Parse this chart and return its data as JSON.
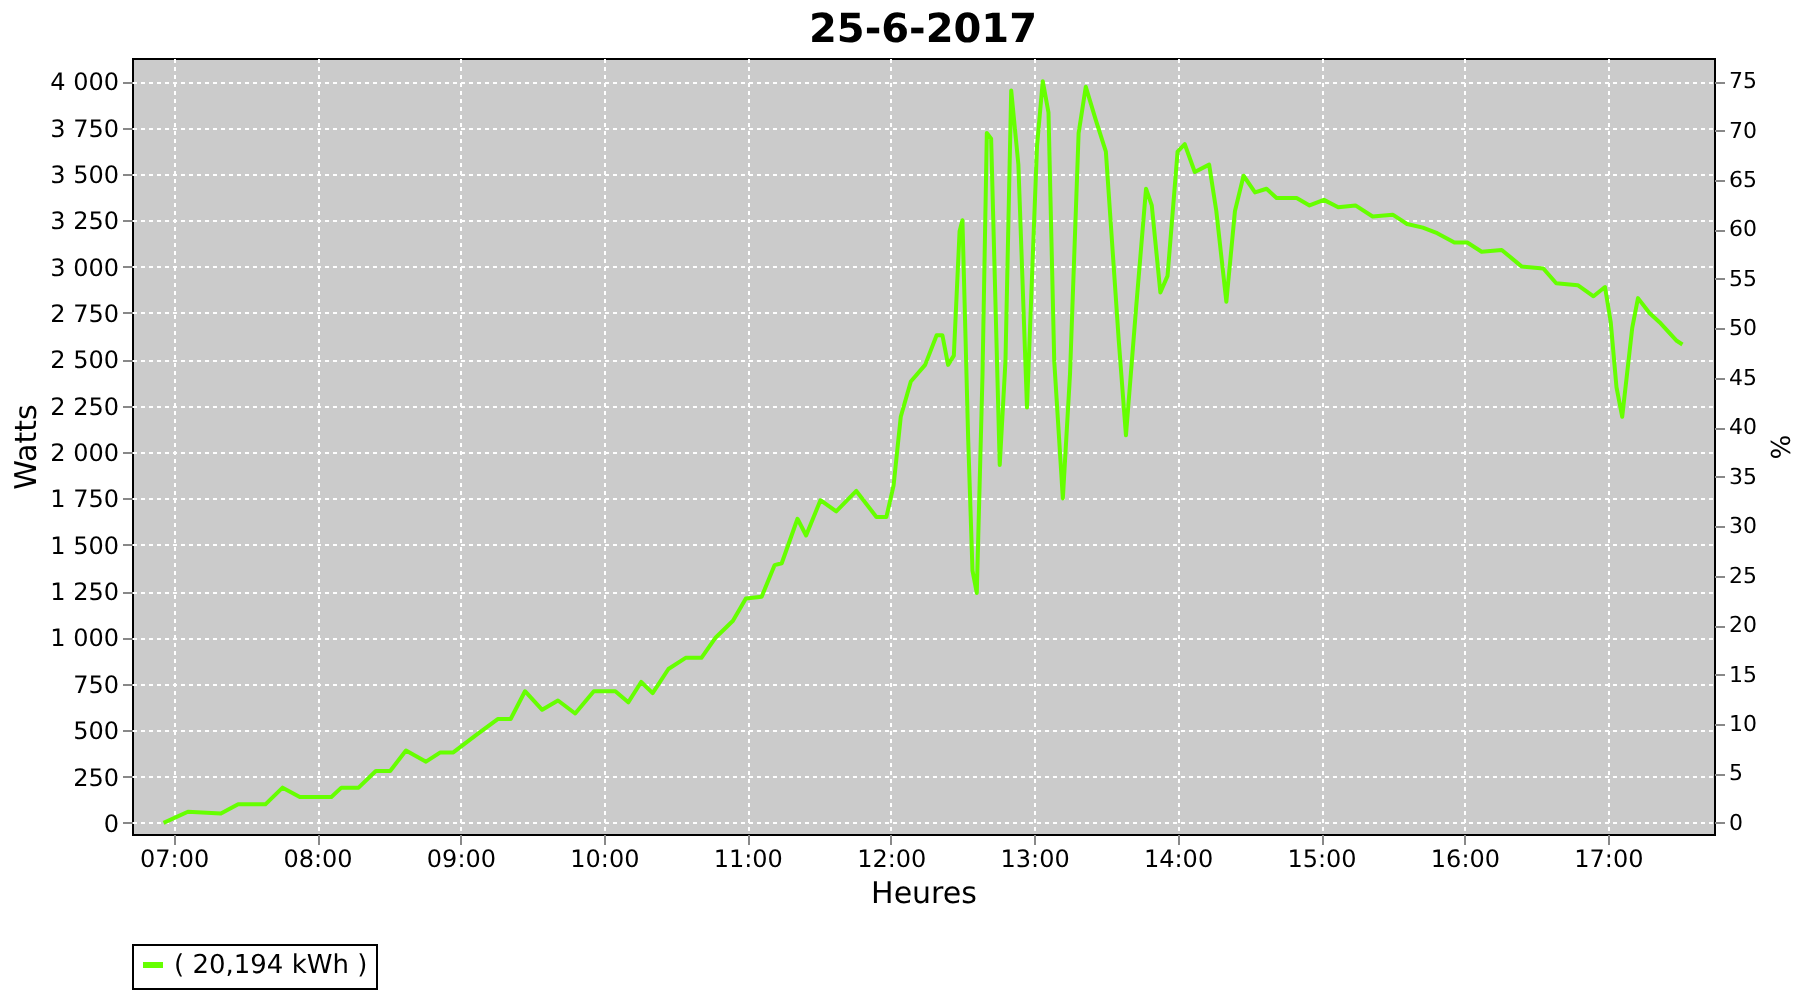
{
  "chart_data": {
    "type": "line",
    "title": "25-6-2017",
    "xlabel": "Heures",
    "ylabel": "Watts",
    "y2label": "%",
    "x": [
      6.93,
      7.1,
      7.33,
      7.45,
      7.64,
      7.76,
      7.88,
      8.1,
      8.17,
      8.29,
      8.41,
      8.51,
      8.62,
      8.76,
      8.86,
      8.95,
      9.12,
      9.26,
      9.35,
      9.45,
      9.57,
      9.68,
      9.8,
      9.93,
      10.08,
      10.17,
      10.26,
      10.34,
      10.45,
      10.57,
      10.68,
      10.78,
      10.9,
      10.99,
      11.1,
      11.19,
      11.24,
      11.35,
      11.41,
      11.51,
      11.62,
      11.76,
      11.9,
      11.97,
      12.02,
      12.07,
      12.14,
      12.24,
      12.32,
      12.36,
      12.4,
      12.44,
      12.48,
      12.5,
      12.54,
      12.57,
      12.6,
      12.64,
      12.67,
      12.7,
      12.76,
      12.8,
      12.84,
      12.89,
      12.95,
      13.02,
      13.06,
      13.1,
      13.14,
      13.2,
      13.25,
      13.31,
      13.36,
      13.43,
      13.5,
      13.59,
      13.64,
      13.71,
      13.78,
      13.82,
      13.88,
      13.93,
      14.0,
      14.05,
      14.12,
      14.22,
      14.27,
      14.34,
      14.4,
      14.46,
      14.54,
      14.62,
      14.69,
      14.83,
      14.92,
      15.02,
      15.12,
      15.24,
      15.36,
      15.5,
      15.6,
      15.71,
      15.81,
      15.93,
      16.02,
      16.12,
      16.26,
      16.4,
      16.55,
      16.64,
      16.79,
      16.9,
      16.98,
      17.02,
      17.06,
      17.1,
      17.17,
      17.21,
      17.29,
      17.36,
      17.48,
      17.52
    ],
    "series": [
      {
        "name": "( 20,194 kWh )",
        "color": "#66ff00",
        "values": [
          0,
          60,
          50,
          100,
          100,
          190,
          140,
          140,
          190,
          190,
          280,
          280,
          390,
          330,
          380,
          380,
          480,
          560,
          560,
          710,
          610,
          660,
          590,
          710,
          710,
          650,
          760,
          700,
          830,
          890,
          890,
          1000,
          1090,
          1210,
          1220,
          1390,
          1400,
          1640,
          1550,
          1740,
          1680,
          1790,
          1650,
          1650,
          1820,
          2190,
          2380,
          2470,
          2630,
          2630,
          2470,
          2520,
          3190,
          3250,
          2070,
          1360,
          1240,
          2420,
          3720,
          3690,
          1930,
          2490,
          3950,
          3550,
          2240,
          3650,
          4000,
          3830,
          2490,
          1750,
          2420,
          3720,
          3970,
          3790,
          3620,
          2600,
          2090,
          2770,
          3420,
          3330,
          2860,
          2950,
          3620,
          3660,
          3510,
          3550,
          3300,
          2810,
          3300,
          3490,
          3400,
          3420,
          3370,
          3370,
          3330,
          3360,
          3320,
          3330,
          3270,
          3280,
          3230,
          3210,
          3180,
          3130,
          3130,
          3080,
          3090,
          3000,
          2990,
          2910,
          2900,
          2840,
          2890,
          2700,
          2350,
          2190,
          2670,
          2830,
          2750,
          2700,
          2600,
          2580
        ]
      }
    ],
    "xlim": [
      6.71,
      17.74
    ],
    "xticks": [
      {
        "value": 7,
        "label": "07:00"
      },
      {
        "value": 8,
        "label": "08:00"
      },
      {
        "value": 9,
        "label": "09:00"
      },
      {
        "value": 10,
        "label": "10:00"
      },
      {
        "value": 11,
        "label": "11:00"
      },
      {
        "value": 12,
        "label": "12:00"
      },
      {
        "value": 13,
        "label": "13:00"
      },
      {
        "value": 14,
        "label": "14:00"
      },
      {
        "value": 15,
        "label": "15:00"
      },
      {
        "value": 16,
        "label": "16:00"
      },
      {
        "value": 17,
        "label": "17:00"
      }
    ],
    "ylim": [
      -60,
      4125
    ],
    "yticks": [
      0,
      250,
      500,
      750,
      {
        "value": 1000,
        "label": "1 000"
      },
      {
        "value": 1250,
        "label": "1 250"
      },
      {
        "value": 1500,
        "label": "1 500"
      },
      {
        "value": 1750,
        "label": "1 750"
      },
      {
        "value": 2000,
        "label": "2 000"
      },
      {
        "value": 2250,
        "label": "2 250"
      },
      {
        "value": 2500,
        "label": "2 500"
      },
      {
        "value": 2750,
        "label": "2 750"
      },
      {
        "value": 3000,
        "label": "3 000"
      },
      {
        "value": 3250,
        "label": "3 250"
      },
      {
        "value": 3500,
        "label": "3 500"
      },
      {
        "value": 3750,
        "label": "3 750"
      },
      {
        "value": 4000,
        "label": "4 000"
      }
    ],
    "y2lim": [
      -1.125,
      77.34
    ],
    "y2ticks": [
      0,
      5,
      10,
      15,
      20,
      25,
      30,
      35,
      40,
      45,
      50,
      55,
      60,
      65,
      70,
      75
    ],
    "grid": true,
    "legend": "bottom",
    "marker": "none",
    "line_style": "solid"
  }
}
